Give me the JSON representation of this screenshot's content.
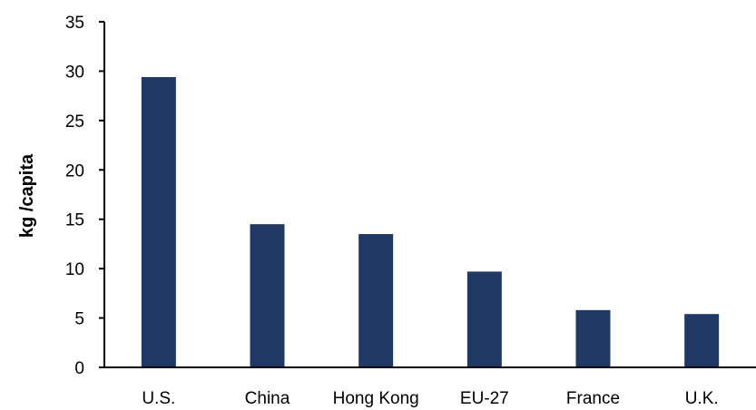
{
  "chart_data": {
    "type": "bar",
    "title": "",
    "xlabel": "",
    "ylabel": "kg /capita",
    "categories": [
      "U.S.",
      "China",
      "Hong Kong",
      "EU-27",
      "France",
      "U.K."
    ],
    "values": [
      29.4,
      14.5,
      13.5,
      9.7,
      5.8,
      5.4
    ],
    "ylim": [
      0,
      35
    ],
    "yticks": [
      0,
      5,
      10,
      15,
      20,
      25,
      30,
      35
    ],
    "grid": false,
    "legend": "none",
    "colors": {
      "bar": "#1f3864",
      "axis": "#000000"
    }
  }
}
